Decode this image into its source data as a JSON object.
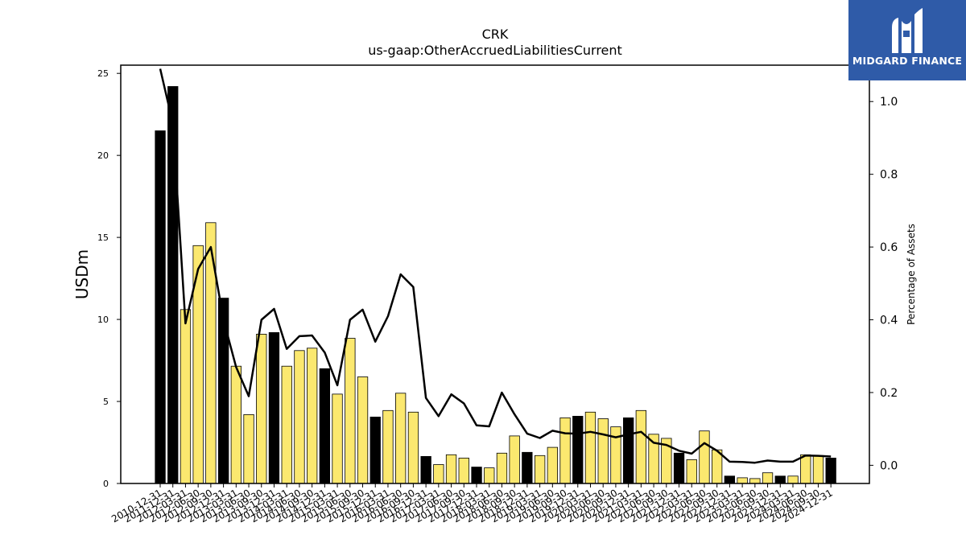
{
  "chart_data": {
    "type": "bar",
    "title": "CRK",
    "subtitle": "us-gaap:OtherAccruedLiabilitiesCurrent",
    "ylabel": "USDm",
    "y2label": "Percentage of Assets",
    "ylim": [
      0,
      25.5
    ],
    "y2lim": [
      -0.05,
      1.1
    ],
    "yticks": [
      0,
      5,
      10,
      15,
      20,
      25
    ],
    "y2ticks": [
      0.0,
      0.2,
      0.4,
      0.6,
      0.8,
      1.0
    ],
    "grid": false,
    "categories": [
      "2010-12-31",
      "2011-12-31",
      "2012-03-31",
      "2012-06-30",
      "2012-09-30",
      "2012-12-31",
      "2013-03-31",
      "2013-06-30",
      "2013-09-30",
      "2013-12-31",
      "2014-03-31",
      "2014-06-30",
      "2014-09-30",
      "2014-12-31",
      "2015-03-31",
      "2015-06-30",
      "2015-09-30",
      "2015-12-31",
      "2016-03-31",
      "2016-06-30",
      "2016-09-30",
      "2016-12-31",
      "2017-03-31",
      "2017-06-30",
      "2017-09-30",
      "2017-12-31",
      "2018-03-31",
      "2018-06-30",
      "2018-09-30",
      "2018-12-31",
      "2019-03-31",
      "2019-06-30",
      "2019-09-30",
      "2019-12-31",
      "2020-03-31",
      "2020-06-30",
      "2020-09-30",
      "2020-12-31",
      "2021-03-31",
      "2021-06-30",
      "2021-09-30",
      "2021-12-31",
      "2022-03-31",
      "2022-06-30",
      "2022-09-30",
      "2022-12-31",
      "2023-03-31",
      "2023-06-30",
      "2023-09-30",
      "2023-12-31",
      "2024-03-31",
      "2024-06-30",
      "2024-09-30",
      "2024-12-31"
    ],
    "series": [
      {
        "kind": "bar",
        "values": [
          21.5,
          24.2,
          10.6,
          14.5,
          15.9,
          11.3,
          7.15,
          4.2,
          9.1,
          9.2,
          7.15,
          8.1,
          8.25,
          7.0,
          5.45,
          8.85,
          6.5,
          4.05,
          4.45,
          5.5,
          4.35,
          1.65,
          1.15,
          1.75,
          1.55,
          1.0,
          0.95,
          1.85,
          2.9,
          1.9,
          1.7,
          2.2,
          4.0,
          4.1,
          4.35,
          3.95,
          3.45,
          4.0,
          4.45,
          3.0,
          2.75,
          1.85,
          1.45,
          3.2,
          2.05,
          0.45,
          0.35,
          0.3,
          0.65,
          0.45,
          0.45,
          1.75,
          1.7,
          1.55
        ],
        "quarter_end": [
          true,
          true,
          false,
          false,
          false,
          true,
          false,
          false,
          false,
          true,
          false,
          false,
          false,
          true,
          false,
          false,
          false,
          true,
          false,
          false,
          false,
          true,
          false,
          false,
          false,
          true,
          false,
          false,
          false,
          true,
          false,
          false,
          false,
          true,
          false,
          false,
          false,
          true,
          false,
          false,
          false,
          true,
          false,
          false,
          false,
          true,
          false,
          false,
          false,
          true,
          false,
          false,
          false,
          true
        ],
        "colors": {
          "year_end": "#000000",
          "other": "#fbe86f",
          "edge": "#000000"
        }
      },
      {
        "kind": "line",
        "axis": "right",
        "values": [
          1.09,
          0.94,
          0.39,
          0.54,
          0.6,
          0.4,
          0.27,
          0.19,
          0.4,
          0.43,
          0.32,
          0.355,
          0.357,
          0.31,
          0.22,
          0.4,
          0.428,
          0.34,
          0.41,
          0.525,
          0.49,
          0.185,
          0.135,
          0.195,
          0.17,
          0.11,
          0.107,
          0.2,
          0.14,
          0.087,
          0.075,
          0.095,
          0.088,
          0.087,
          0.092,
          0.085,
          0.077,
          0.085,
          0.092,
          0.062,
          0.056,
          0.04,
          0.032,
          0.061,
          0.04,
          0.01,
          0.009,
          0.007,
          0.013,
          0.01,
          0.01,
          0.027,
          0.026,
          0.024
        ],
        "color": "#000000"
      }
    ]
  },
  "logo": {
    "text": "MIDGARD FINANCE",
    "bg": "#2f5ba8"
  }
}
